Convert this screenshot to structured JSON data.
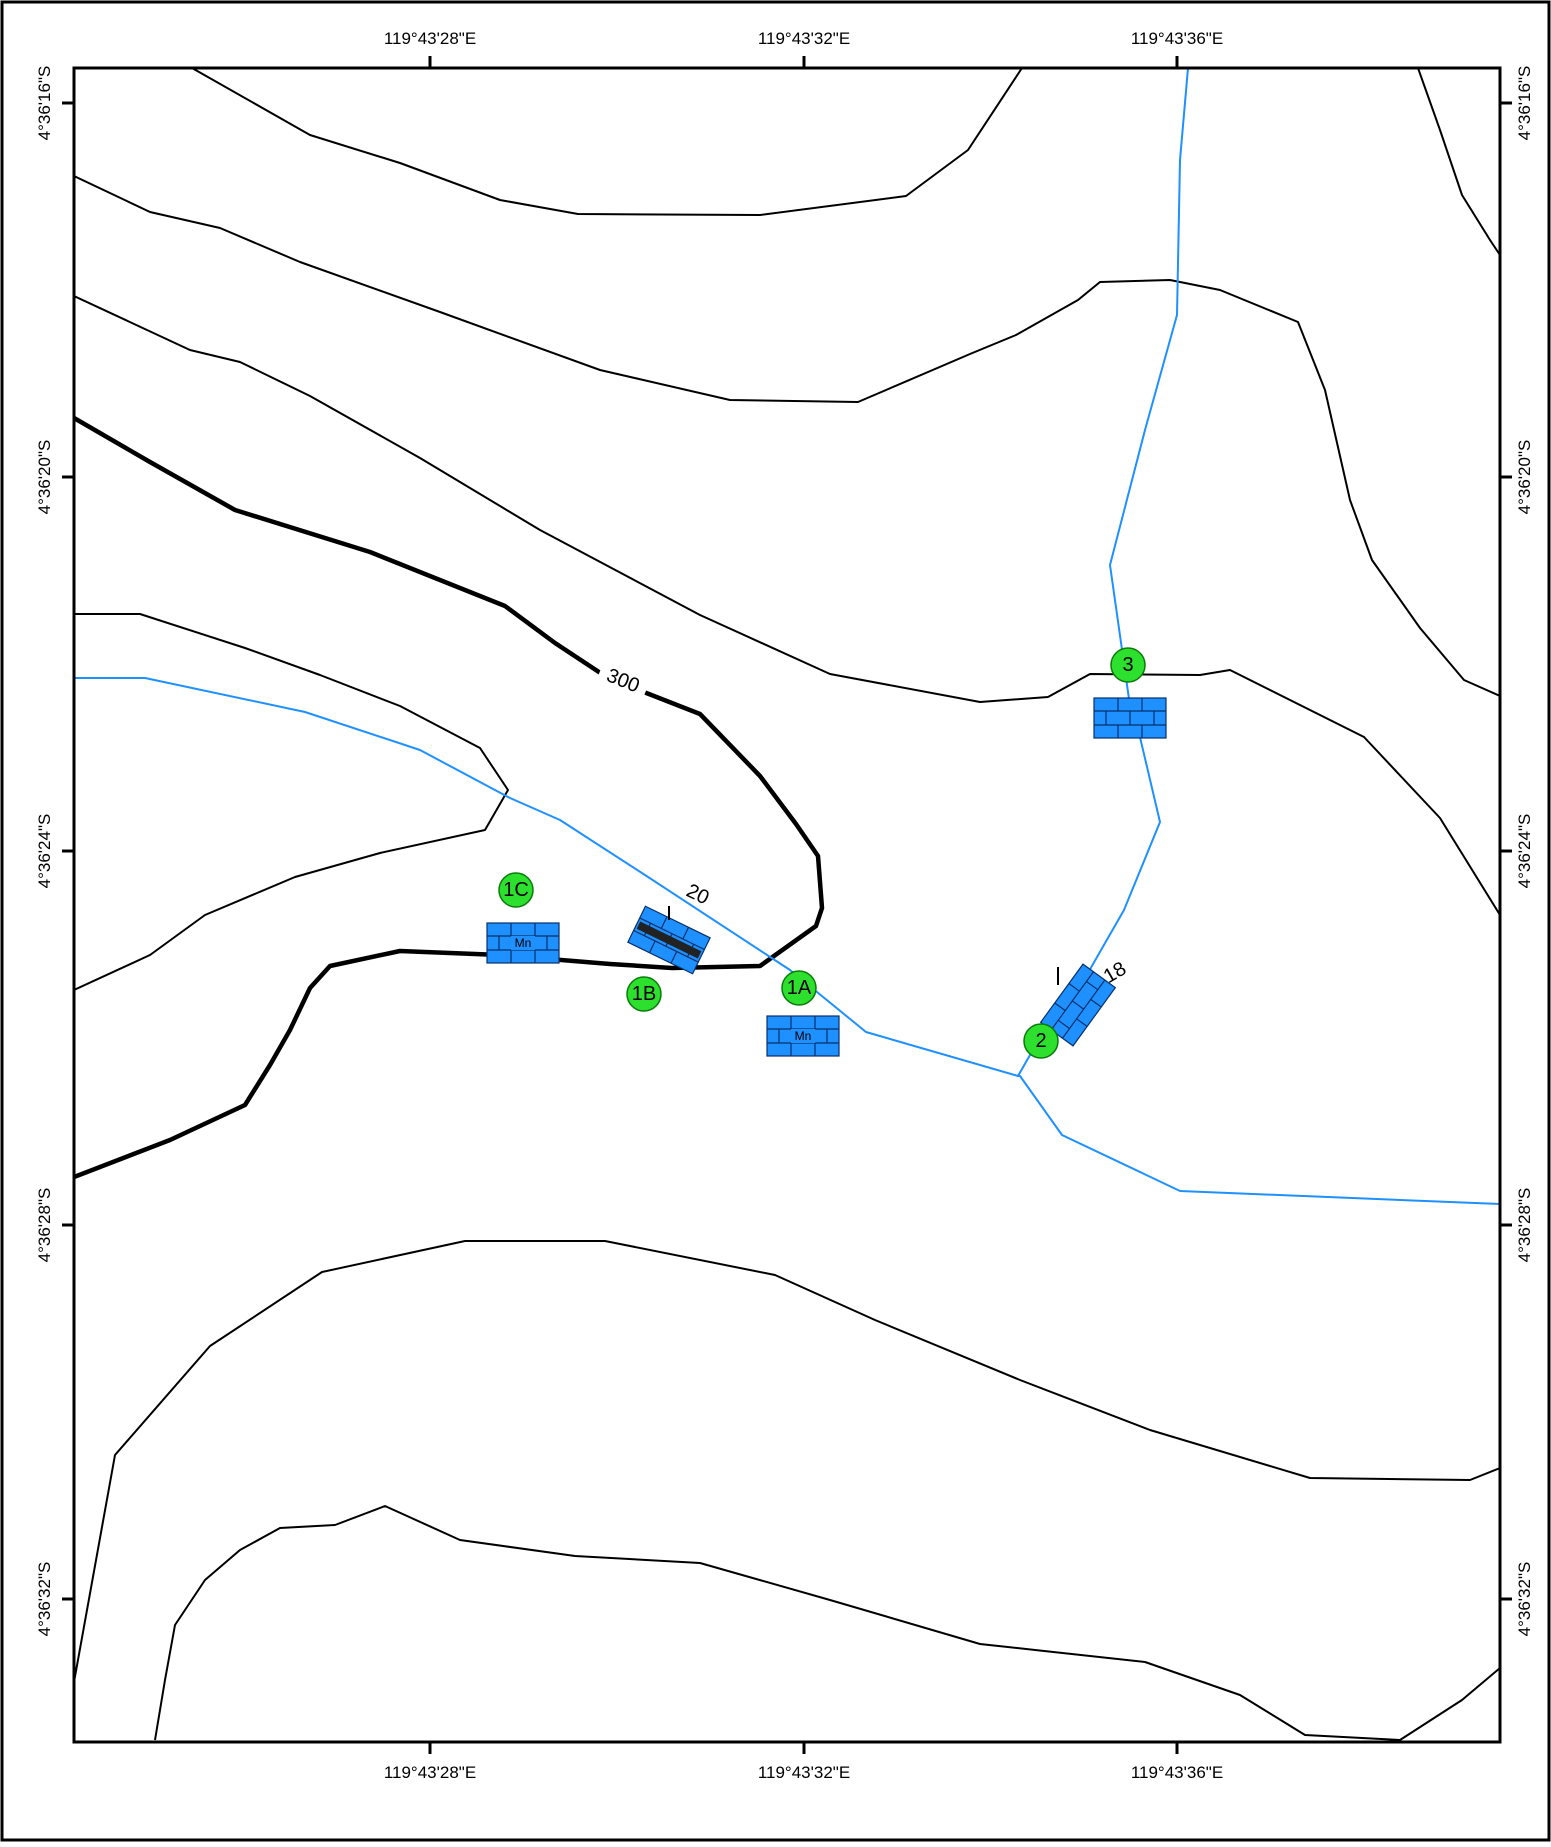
{
  "map": {
    "coordinate_labels": {
      "top": [
        "119°43'28\"E",
        "119°43'32\"E",
        "119°43'36\"E"
      ],
      "bottom": [
        "119°43'28\"E",
        "119°43'32\"E",
        "119°43'36\"E"
      ],
      "left": [
        "4°36'16\"S",
        "4°36'20\"S",
        "4°36'24\"S",
        "4°36'28\"S",
        "4°36'32\"S"
      ],
      "right": [
        "4°36'16\"S",
        "4°36'20\"S",
        "4°36'24\"S",
        "4°36'28\"S",
        "4°36'32\"S"
      ]
    },
    "contour_label": "300",
    "stations": [
      "1A",
      "1B",
      "1C",
      "2",
      "3"
    ],
    "mn_label": "Mn",
    "dip_values": [
      "20",
      "18"
    ],
    "colors": {
      "contour": "#000000",
      "river": "#1e90ff",
      "station_fill": "#2ee02e",
      "outcrop_symbol": "#1e90ff"
    },
    "icons": [
      "station-marker-icon",
      "limestone-outcrop-icon",
      "manganese-outcrop-icon",
      "strike-dip-icon"
    ]
  }
}
